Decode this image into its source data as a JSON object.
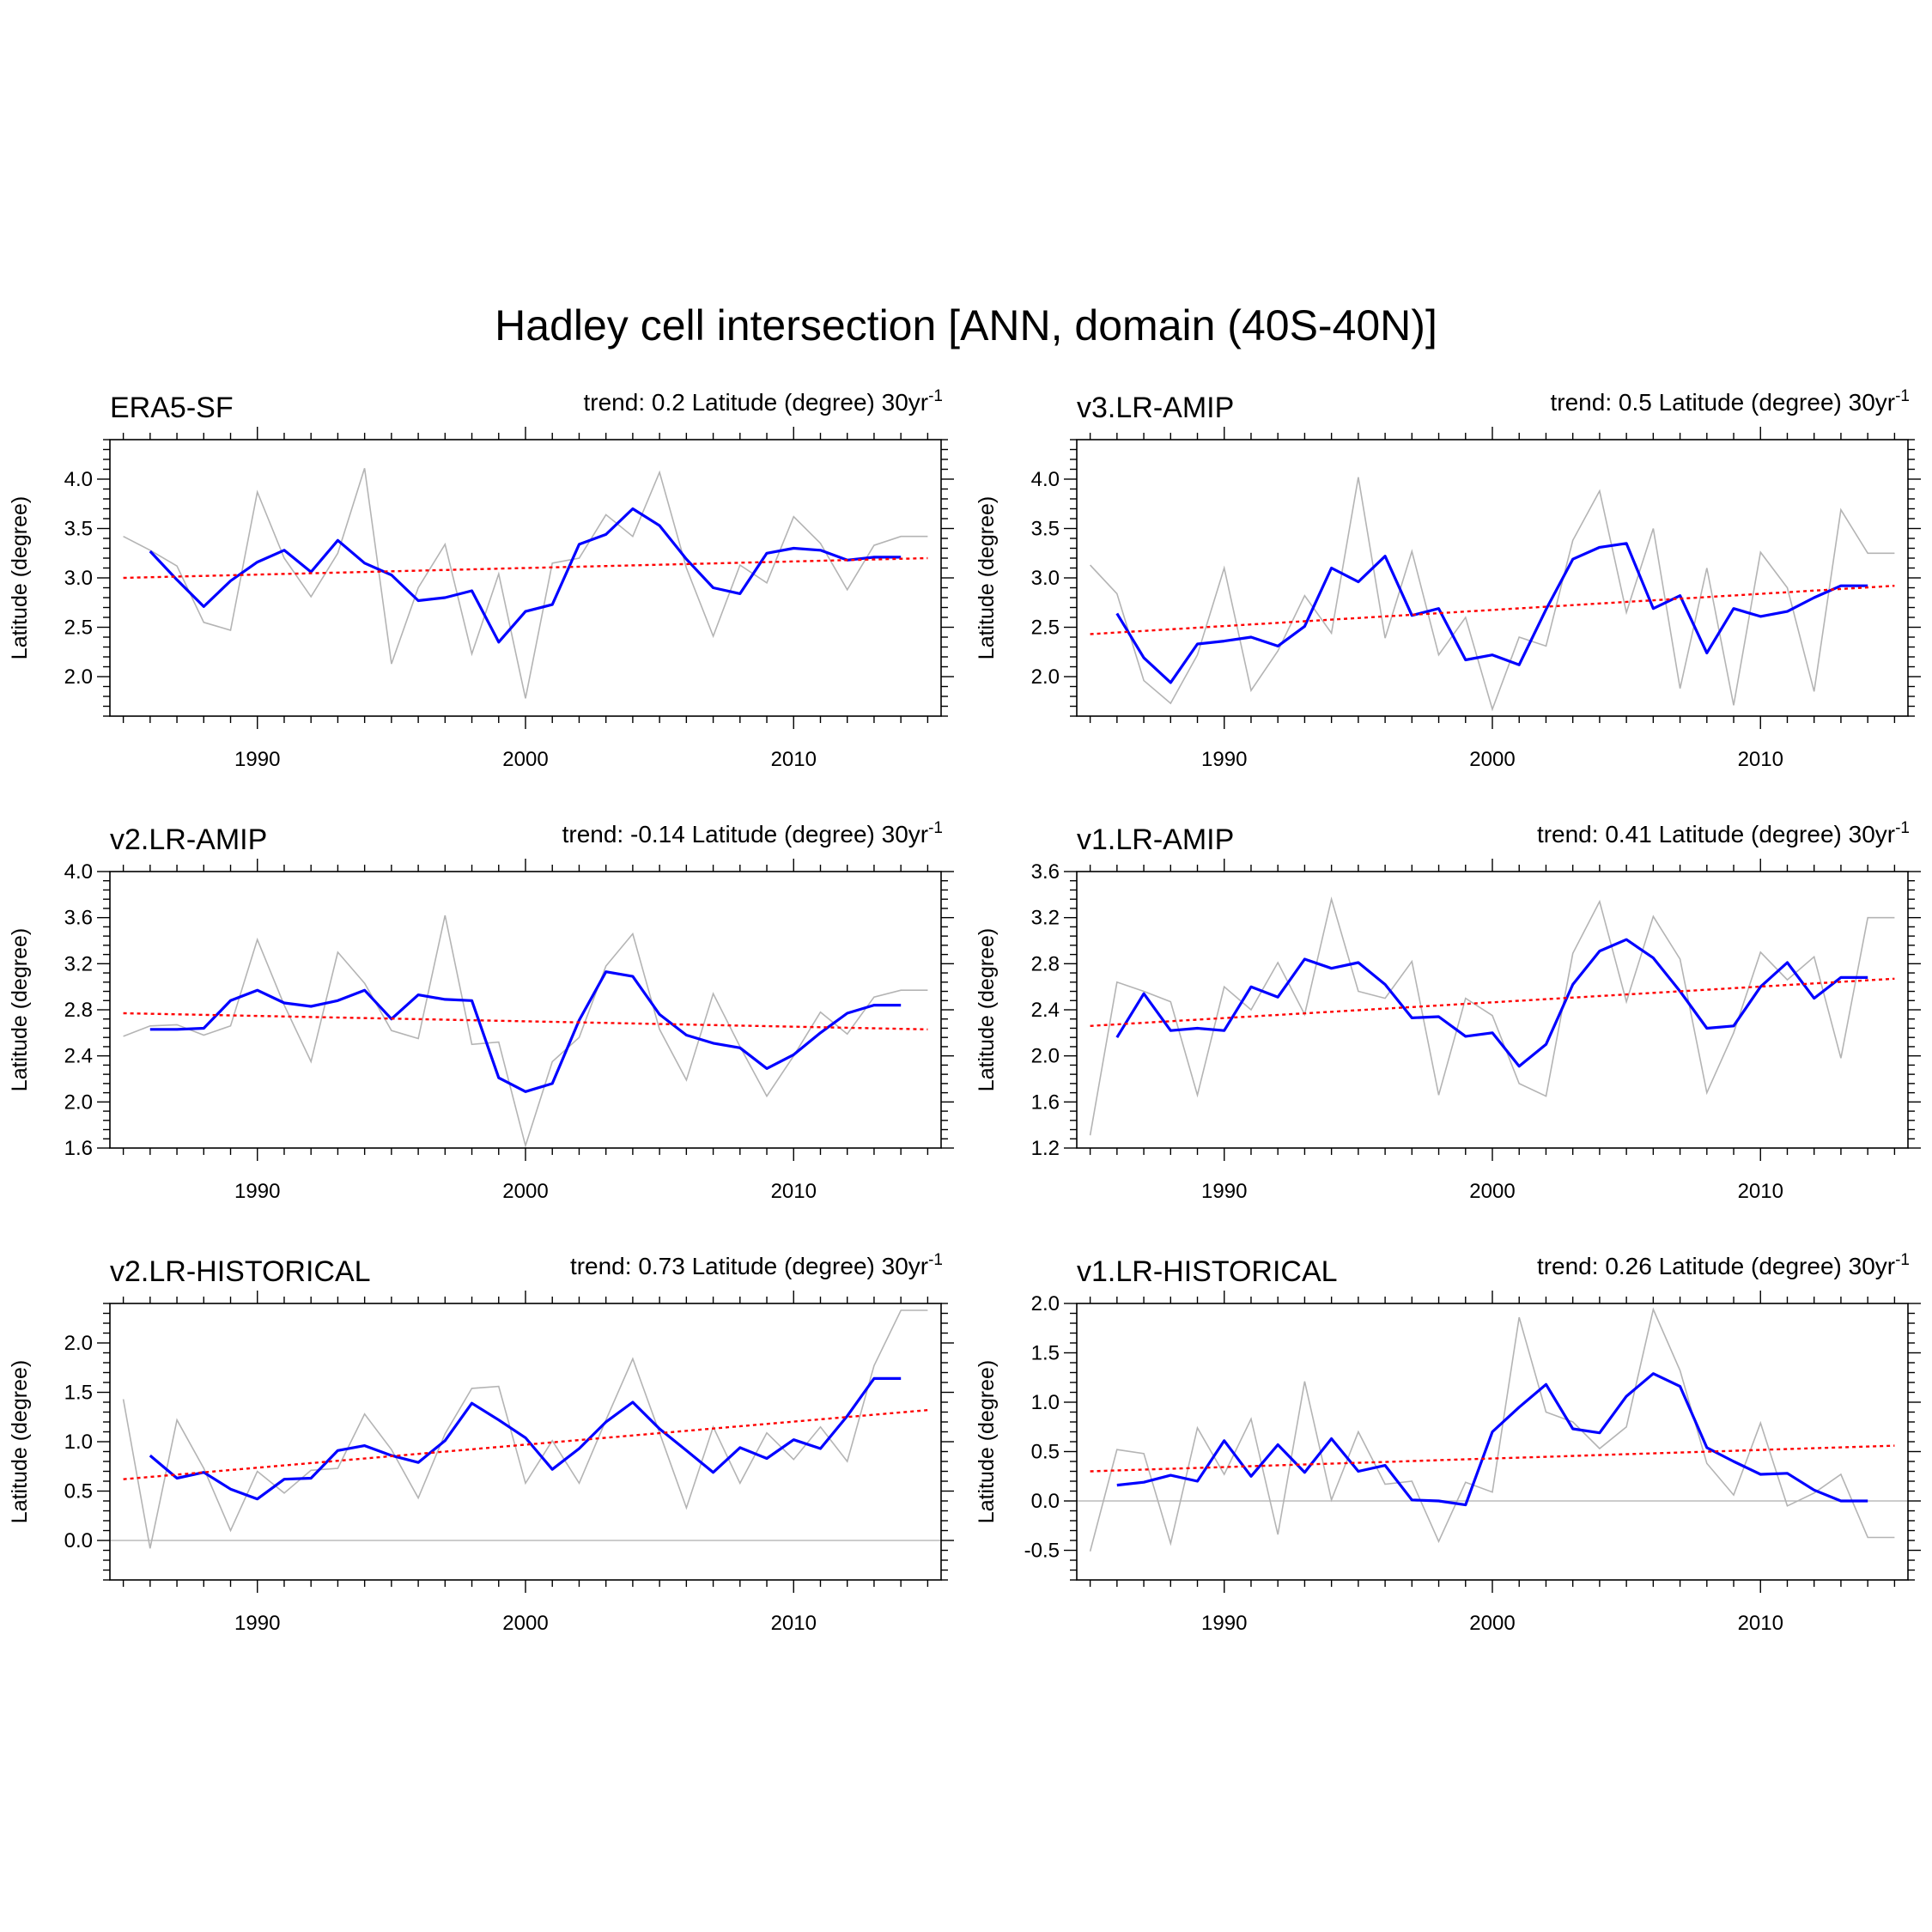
{
  "title": "Hadley cell intersection [ANN, domain (40S-40N)]",
  "chart_data": [
    {
      "type": "line",
      "title": "ERA5-SF",
      "trend_label": "trend: 0.2 Latitude (degree) 30yr",
      "trend_unit_sup": "-1",
      "ylabel": "Latitude (degree)",
      "xlim": [
        1984.5,
        2015.5
      ],
      "ylim": [
        1.6,
        4.4
      ],
      "yticks": [
        2.0,
        2.5,
        3.0,
        3.5,
        4.0
      ],
      "xticks": [
        1990,
        2000,
        2010
      ],
      "zero_line": false,
      "series": [
        {
          "role": "annual",
          "color": "#b4b4b4",
          "x": [
            1985,
            1986,
            1987,
            1988,
            1989,
            1990,
            1991,
            1992,
            1993,
            1994,
            1995,
            1996,
            1997,
            1998,
            1999,
            2000,
            2001,
            2002,
            2003,
            2004,
            2005,
            2006,
            2007,
            2008,
            2009,
            2010,
            2011,
            2012,
            2013,
            2014,
            2015
          ],
          "values": [
            3.42,
            3.28,
            3.12,
            2.55,
            2.47,
            3.87,
            3.2,
            2.81,
            3.25,
            4.11,
            2.13,
            2.9,
            3.34,
            2.23,
            3.04,
            1.78,
            3.15,
            3.2,
            3.64,
            3.42,
            4.07,
            3.1,
            2.41,
            3.13,
            2.95,
            3.62,
            3.35,
            2.88,
            3.33,
            3.42,
            3.42
          ]
        },
        {
          "role": "smoothed",
          "color": "#0000ff",
          "x": [
            1986,
            1987,
            1988,
            1989,
            1990,
            1991,
            1992,
            1993,
            1994,
            1995,
            1996,
            1997,
            1998,
            1999,
            2000,
            2001,
            2002,
            2003,
            2004,
            2005,
            2006,
            2007,
            2008,
            2009,
            2010,
            2011,
            2012,
            2013,
            2014
          ],
          "values": [
            3.27,
            2.98,
            2.71,
            2.97,
            3.16,
            3.28,
            3.06,
            3.38,
            3.15,
            3.03,
            2.77,
            2.8,
            2.87,
            2.35,
            2.66,
            2.73,
            3.34,
            3.44,
            3.7,
            3.53,
            3.19,
            2.9,
            2.84,
            3.25,
            3.3,
            3.28,
            3.18,
            3.21,
            3.21
          ]
        },
        {
          "role": "trend",
          "color": "#ff0000",
          "x": [
            1985,
            2015
          ],
          "values": [
            3.0,
            3.2
          ]
        }
      ]
    },
    {
      "type": "line",
      "title": "v3.LR-AMIP",
      "trend_label": "trend: 0.5 Latitude (degree) 30yr",
      "trend_unit_sup": "-1",
      "ylabel": "Latitude (degree)",
      "xlim": [
        1984.5,
        2015.5
      ],
      "ylim": [
        1.6,
        4.4
      ],
      "yticks": [
        2.0,
        2.5,
        3.0,
        3.5,
        4.0
      ],
      "xticks": [
        1990,
        2000,
        2010
      ],
      "zero_line": false,
      "series": [
        {
          "role": "annual",
          "color": "#b4b4b4",
          "x": [
            1985,
            1986,
            1987,
            1988,
            1989,
            1990,
            1991,
            1992,
            1993,
            1994,
            1995,
            1996,
            1997,
            1998,
            1999,
            2000,
            2001,
            2002,
            2003,
            2004,
            2005,
            2006,
            2007,
            2008,
            2009,
            2010,
            2011,
            2012,
            2013,
            2014,
            2015
          ],
          "values": [
            3.13,
            2.84,
            1.96,
            1.73,
            2.22,
            3.1,
            1.86,
            2.26,
            2.82,
            2.44,
            4.02,
            2.39,
            3.27,
            2.22,
            2.6,
            1.67,
            2.4,
            2.31,
            3.38,
            3.88,
            2.65,
            3.5,
            1.88,
            3.1,
            1.71,
            3.26,
            2.9,
            1.85,
            3.69,
            3.25,
            3.25
          ]
        },
        {
          "role": "smoothed",
          "color": "#0000ff",
          "x": [
            1986,
            1987,
            1988,
            1989,
            1990,
            1991,
            1992,
            1993,
            1994,
            1995,
            1996,
            1997,
            1998,
            1999,
            2000,
            2001,
            2002,
            2003,
            2004,
            2005,
            2006,
            2007,
            2008,
            2009,
            2010,
            2011,
            2012,
            2013,
            2014
          ],
          "values": [
            2.64,
            2.19,
            1.94,
            2.33,
            2.36,
            2.4,
            2.31,
            2.51,
            3.1,
            2.96,
            3.22,
            2.62,
            2.69,
            2.17,
            2.22,
            2.12,
            2.68,
            3.19,
            3.31,
            3.35,
            2.69,
            2.82,
            2.24,
            2.69,
            2.61,
            2.66,
            2.8,
            2.92,
            2.92
          ]
        },
        {
          "role": "trend",
          "color": "#ff0000",
          "x": [
            1985,
            2015
          ],
          "values": [
            2.43,
            2.92
          ]
        }
      ]
    },
    {
      "type": "line",
      "title": "v2.LR-AMIP",
      "trend_label": "trend: -0.14 Latitude (degree) 30yr",
      "trend_unit_sup": "-1",
      "ylabel": "Latitude (degree)",
      "xlim": [
        1984.5,
        2015.5
      ],
      "ylim": [
        1.6,
        4.0
      ],
      "yticks": [
        1.6,
        2.0,
        2.4,
        2.8,
        3.2,
        3.6,
        4.0
      ],
      "xticks": [
        1990,
        2000,
        2010
      ],
      "zero_line": false,
      "series": [
        {
          "role": "annual",
          "color": "#b4b4b4",
          "x": [
            1985,
            1986,
            1987,
            1988,
            1989,
            1990,
            1991,
            1992,
            1993,
            1994,
            1995,
            1996,
            1997,
            1998,
            1999,
            2000,
            2001,
            2002,
            2003,
            2004,
            2005,
            2006,
            2007,
            2008,
            2009,
            2010,
            2011,
            2012,
            2013,
            2014,
            2015
          ],
          "values": [
            2.57,
            2.66,
            2.67,
            2.58,
            2.66,
            3.41,
            2.84,
            2.35,
            3.3,
            3.03,
            2.62,
            2.55,
            3.62,
            2.5,
            2.52,
            1.62,
            2.35,
            2.56,
            3.18,
            3.46,
            2.63,
            2.19,
            2.94,
            2.48,
            2.05,
            2.4,
            2.78,
            2.59,
            2.91,
            2.97,
            2.97
          ]
        },
        {
          "role": "smoothed",
          "color": "#0000ff",
          "x": [
            1986,
            1987,
            1988,
            1989,
            1990,
            1991,
            1992,
            1993,
            1994,
            1995,
            1996,
            1997,
            1998,
            1999,
            2000,
            2001,
            2002,
            2003,
            2004,
            2005,
            2006,
            2007,
            2008,
            2009,
            2010,
            2011,
            2012,
            2013,
            2014
          ],
          "values": [
            2.63,
            2.63,
            2.64,
            2.88,
            2.97,
            2.86,
            2.83,
            2.88,
            2.97,
            2.72,
            2.93,
            2.89,
            2.88,
            2.21,
            2.09,
            2.16,
            2.71,
            3.13,
            3.09,
            2.76,
            2.58,
            2.51,
            2.47,
            2.29,
            2.41,
            2.6,
            2.77,
            2.84,
            2.84
          ]
        },
        {
          "role": "trend",
          "color": "#ff0000",
          "x": [
            1985,
            2015
          ],
          "values": [
            2.77,
            2.63
          ]
        }
      ]
    },
    {
      "type": "line",
      "title": "v1.LR-AMIP",
      "trend_label": "trend: 0.41 Latitude (degree) 30yr",
      "trend_unit_sup": "-1",
      "ylabel": "Latitude (degree)",
      "xlim": [
        1984.5,
        2015.5
      ],
      "ylim": [
        1.2,
        3.6
      ],
      "yticks": [
        1.2,
        1.6,
        2.0,
        2.4,
        2.8,
        3.2,
        3.6
      ],
      "xticks": [
        1990,
        2000,
        2010
      ],
      "zero_line": false,
      "series": [
        {
          "role": "annual",
          "color": "#b4b4b4",
          "x": [
            1985,
            1986,
            1987,
            1988,
            1989,
            1990,
            1991,
            1992,
            1993,
            1994,
            1995,
            1996,
            1997,
            1998,
            1999,
            2000,
            2001,
            2002,
            2003,
            2004,
            2005,
            2006,
            2007,
            2008,
            2009,
            2010,
            2011,
            2012,
            2013,
            2014,
            2015
          ],
          "values": [
            1.31,
            2.64,
            2.56,
            2.47,
            1.66,
            2.6,
            2.4,
            2.81,
            2.36,
            3.36,
            2.56,
            2.5,
            2.82,
            1.66,
            2.5,
            2.35,
            1.76,
            1.65,
            2.89,
            3.34,
            2.47,
            3.21,
            2.84,
            1.68,
            2.2,
            2.9,
            2.66,
            2.86,
            1.98,
            3.2,
            3.2
          ]
        },
        {
          "role": "smoothed",
          "color": "#0000ff",
          "x": [
            1986,
            1987,
            1988,
            1989,
            1990,
            1991,
            1992,
            1993,
            1994,
            1995,
            1996,
            1997,
            1998,
            1999,
            2000,
            2001,
            2002,
            2003,
            2004,
            2005,
            2006,
            2007,
            2008,
            2009,
            2010,
            2011,
            2012,
            2013,
            2014
          ],
          "values": [
            2.16,
            2.54,
            2.22,
            2.24,
            2.22,
            2.6,
            2.51,
            2.84,
            2.76,
            2.81,
            2.62,
            2.33,
            2.34,
            2.17,
            2.2,
            1.91,
            2.1,
            2.62,
            2.91,
            3.01,
            2.85,
            2.56,
            2.24,
            2.26,
            2.6,
            2.81,
            2.5,
            2.68,
            2.68
          ]
        },
        {
          "role": "trend",
          "color": "#ff0000",
          "x": [
            1985,
            2015
          ],
          "values": [
            2.26,
            2.67
          ]
        }
      ]
    },
    {
      "type": "line",
      "title": "v2.LR-HISTORICAL",
      "trend_label": "trend: 0.73 Latitude (degree) 30yr",
      "trend_unit_sup": "-1",
      "ylabel": "Latitude (degree)",
      "xlim": [
        1984.5,
        2015.5
      ],
      "ylim": [
        -0.4,
        2.4
      ],
      "yticks": [
        0.0,
        0.5,
        1.0,
        1.5,
        2.0
      ],
      "xticks": [
        1990,
        2000,
        2010
      ],
      "zero_line": true,
      "series": [
        {
          "role": "annual",
          "color": "#b4b4b4",
          "x": [
            1985,
            1986,
            1987,
            1988,
            1989,
            1990,
            1991,
            1992,
            1993,
            1994,
            1995,
            1996,
            1997,
            1998,
            1999,
            2000,
            2001,
            2002,
            2003,
            2004,
            2005,
            2006,
            2007,
            2008,
            2009,
            2010,
            2011,
            2012,
            2013,
            2014,
            2015
          ],
          "values": [
            1.43,
            -0.08,
            1.22,
            0.73,
            0.1,
            0.7,
            0.48,
            0.71,
            0.73,
            1.28,
            0.92,
            0.43,
            1.08,
            1.54,
            1.56,
            0.58,
            1.01,
            0.58,
            1.22,
            1.84,
            1.09,
            0.33,
            1.15,
            0.58,
            1.09,
            0.82,
            1.15,
            0.8,
            1.77,
            2.33,
            2.33
          ]
        },
        {
          "role": "smoothed",
          "color": "#0000ff",
          "x": [
            1986,
            1987,
            1988,
            1989,
            1990,
            1991,
            1992,
            1993,
            1994,
            1995,
            1996,
            1997,
            1998,
            1999,
            2000,
            2001,
            2002,
            2003,
            2004,
            2005,
            2006,
            2007,
            2008,
            2009,
            2010,
            2011,
            2012,
            2013,
            2014
          ],
          "values": [
            0.86,
            0.63,
            0.69,
            0.52,
            0.42,
            0.62,
            0.63,
            0.91,
            0.96,
            0.86,
            0.79,
            1.01,
            1.39,
            1.22,
            1.04,
            0.72,
            0.93,
            1.2,
            1.4,
            1.13,
            0.91,
            0.69,
            0.94,
            0.83,
            1.02,
            0.93,
            1.26,
            1.64,
            1.64
          ]
        },
        {
          "role": "trend",
          "color": "#ff0000",
          "x": [
            1985,
            2015
          ],
          "values": [
            0.62,
            1.32
          ]
        }
      ]
    },
    {
      "type": "line",
      "title": "v1.LR-HISTORICAL",
      "trend_label": "trend: 0.26 Latitude (degree) 30yr",
      "trend_unit_sup": "-1",
      "ylabel": "Latitude (degree)",
      "xlim": [
        1984.5,
        2015.5
      ],
      "ylim": [
        -0.8,
        2.0
      ],
      "yticks": [
        -0.5,
        0.0,
        0.5,
        1.0,
        1.5,
        2.0
      ],
      "xticks": [
        1990,
        2000,
        2010
      ],
      "zero_line": true,
      "series": [
        {
          "role": "annual",
          "color": "#b4b4b4",
          "x": [
            1985,
            1986,
            1987,
            1988,
            1989,
            1990,
            1991,
            1992,
            1993,
            1994,
            1995,
            1996,
            1997,
            1998,
            1999,
            2000,
            2001,
            2002,
            2003,
            2004,
            2005,
            2006,
            2007,
            2008,
            2009,
            2010,
            2011,
            2012,
            2013,
            2014,
            2015
          ],
          "values": [
            -0.51,
            0.52,
            0.48,
            -0.43,
            0.74,
            0.27,
            0.83,
            -0.34,
            1.21,
            0.01,
            0.7,
            0.17,
            0.2,
            -0.41,
            0.19,
            0.09,
            1.86,
            0.9,
            0.8,
            0.53,
            0.75,
            1.94,
            1.32,
            0.38,
            0.06,
            0.79,
            -0.05,
            0.08,
            0.27,
            -0.37,
            -0.37
          ]
        },
        {
          "role": "smoothed",
          "color": "#0000ff",
          "x": [
            1986,
            1987,
            1988,
            1989,
            1990,
            1991,
            1992,
            1993,
            1994,
            1995,
            1996,
            1997,
            1998,
            1999,
            2000,
            2001,
            2002,
            2003,
            2004,
            2005,
            2006,
            2007,
            2008,
            2009,
            2010,
            2011,
            2012,
            2013,
            2014
          ],
          "values": [
            0.16,
            0.19,
            0.26,
            0.2,
            0.61,
            0.25,
            0.57,
            0.29,
            0.63,
            0.3,
            0.36,
            0.01,
            0.0,
            -0.04,
            0.7,
            0.95,
            1.18,
            0.73,
            0.69,
            1.06,
            1.29,
            1.16,
            0.54,
            0.4,
            0.27,
            0.28,
            0.11,
            0.0,
            0.0
          ]
        },
        {
          "role": "trend",
          "color": "#ff0000",
          "x": [
            1985,
            2015
          ],
          "values": [
            0.3,
            0.56
          ]
        }
      ]
    }
  ]
}
